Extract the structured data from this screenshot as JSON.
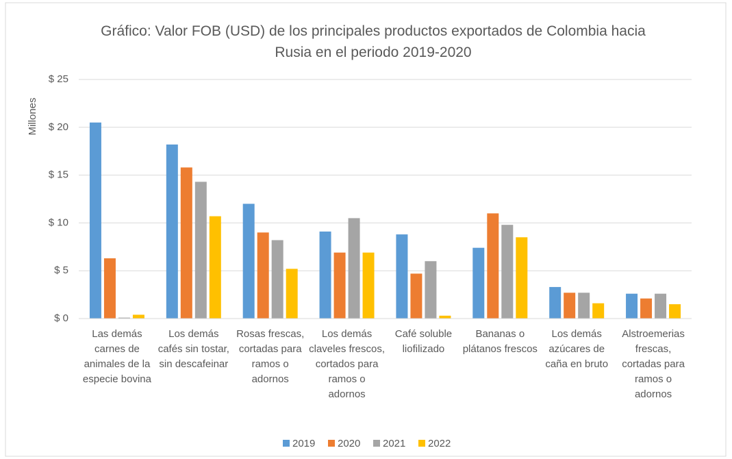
{
  "chart_data": {
    "type": "bar",
    "title": "Gráfico: Valor FOB (USD) de los principales productos exportados de Colombia hacia Rusia en el periodo 2019-2020",
    "y_label": "Millones",
    "categories": [
      "Las demás carnes de animales de la especie bovina",
      "Los demás cafés sin tostar, sin descafeinar",
      "Rosas frescas, cortadas para ramos o adornos",
      "Los demás claveles frescos, cortados para ramos o adornos",
      "Café soluble liofilizado",
      "Bananas o plátanos frescos",
      "Los demás azúcares de caña en bruto",
      "Alstroemerias frescas, cortadas para ramos o adornos"
    ],
    "series": [
      {
        "name": "2019",
        "color": "#5b9bd5",
        "values": [
          20.5,
          18.2,
          12.0,
          9.1,
          8.8,
          7.4,
          3.3,
          2.6
        ]
      },
      {
        "name": "2020",
        "color": "#ed7d31",
        "values": [
          6.3,
          15.8,
          9.0,
          6.9,
          4.7,
          11.0,
          2.7,
          2.1
        ]
      },
      {
        "name": "2021",
        "color": "#a5a5a5",
        "values": [
          0.1,
          14.3,
          8.2,
          10.5,
          6.0,
          9.8,
          2.7,
          2.6
        ]
      },
      {
        "name": "2022",
        "color": "#ffc000",
        "values": [
          0.4,
          10.7,
          5.2,
          6.9,
          0.3,
          8.5,
          1.6,
          1.5
        ]
      }
    ],
    "ylim": [
      0,
      25
    ],
    "yticks": [
      {
        "value": 0,
        "label": "$ 0"
      },
      {
        "value": 5,
        "label": "$ 5"
      },
      {
        "value": 10,
        "label": "$ 10"
      },
      {
        "value": 15,
        "label": "$ 15"
      },
      {
        "value": 20,
        "label": "$ 20"
      },
      {
        "value": 25,
        "label": "$ 25"
      }
    ],
    "grid": true,
    "legend": "bottom"
  }
}
